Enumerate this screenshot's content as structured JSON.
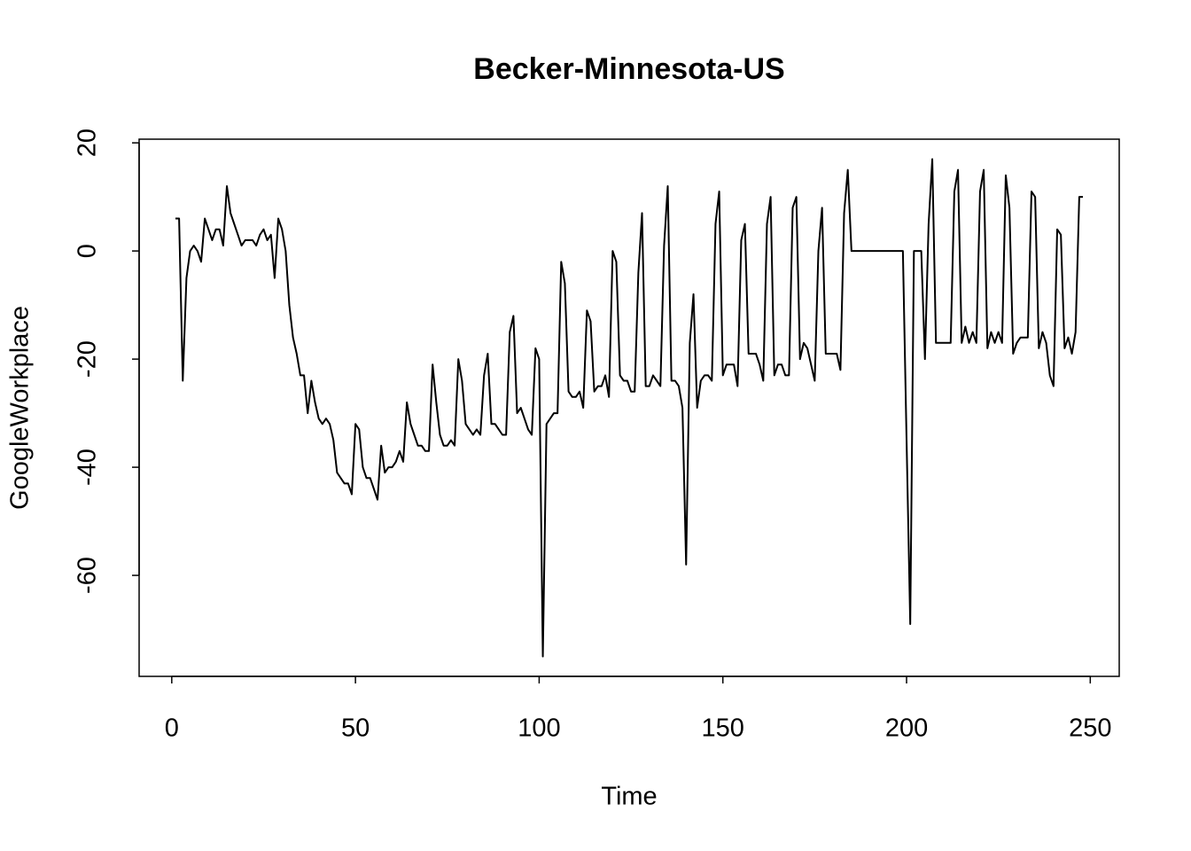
{
  "chart_data": {
    "type": "line",
    "title": "Becker-Minnesota-US",
    "x_label": "Time",
    "y_label": "GoogleWorkplace",
    "x": [
      1,
      2,
      3,
      4,
      5,
      6,
      7,
      8,
      9,
      10,
      11,
      12,
      13,
      14,
      15,
      16,
      17,
      18,
      19,
      20,
      21,
      22,
      23,
      24,
      25,
      26,
      27,
      28,
      29,
      30,
      31,
      32,
      33,
      34,
      35,
      36,
      37,
      38,
      39,
      40,
      41,
      42,
      43,
      44,
      45,
      46,
      47,
      48,
      49,
      50,
      51,
      52,
      53,
      54,
      55,
      56,
      57,
      58,
      59,
      60,
      61,
      62,
      63,
      64,
      65,
      66,
      67,
      68,
      69,
      70,
      71,
      72,
      73,
      74,
      75,
      76,
      77,
      78,
      79,
      80,
      81,
      82,
      83,
      84,
      85,
      86,
      87,
      88,
      89,
      90,
      91,
      92,
      93,
      94,
      95,
      96,
      97,
      98,
      99,
      100,
      101,
      102,
      103,
      104,
      105,
      106,
      107,
      108,
      109,
      110,
      111,
      112,
      113,
      114,
      115,
      116,
      117,
      118,
      119,
      120,
      121,
      122,
      123,
      124,
      125,
      126,
      127,
      128,
      129,
      130,
      131,
      132,
      133,
      134,
      135,
      136,
      137,
      138,
      139,
      140,
      141,
      142,
      143,
      144,
      145,
      146,
      147,
      148,
      149,
      150,
      151,
      152,
      153,
      154,
      155,
      156,
      157,
      158,
      159,
      160,
      161,
      162,
      163,
      164,
      165,
      166,
      167,
      168,
      169,
      170,
      171,
      172,
      173,
      174,
      175,
      176,
      177,
      178,
      179,
      180,
      181,
      182,
      183,
      184,
      185,
      186,
      187,
      188,
      189,
      190,
      191,
      192,
      193,
      194,
      195,
      196,
      197,
      198,
      199,
      200,
      201,
      202,
      203,
      204,
      205,
      206,
      207,
      208,
      209,
      210,
      211,
      212,
      213,
      214,
      215,
      216,
      217,
      218,
      219,
      220,
      221,
      222,
      223,
      224,
      225,
      226,
      227,
      228,
      229,
      230,
      231,
      232,
      233,
      234,
      235,
      236,
      237,
      238,
      239,
      240,
      241,
      242,
      243,
      244,
      245,
      246,
      247,
      248
    ],
    "series": [
      {
        "name": "GoogleWorkplace",
        "color": "#000000",
        "values": [
          6,
          6,
          -24,
          -5,
          0,
          1,
          0,
          -2,
          6,
          4,
          2,
          4,
          4,
          1,
          12,
          7,
          5,
          3,
          1,
          2,
          2,
          2,
          1,
          3,
          4,
          2,
          3,
          -5,
          6,
          4,
          0,
          -10,
          -16,
          -19,
          -23,
          -23,
          -30,
          -24,
          -28,
          -31,
          -32,
          -31,
          -32,
          -35,
          -41,
          -42,
          -43,
          -43,
          -45,
          -32,
          -33,
          -40,
          -42,
          -42,
          -44,
          -46,
          -36,
          -41,
          -40,
          -40,
          -39,
          -37,
          -39,
          -28,
          -32,
          -34,
          -36,
          -36,
          -37,
          -37,
          -21,
          -28,
          -34,
          -36,
          -36,
          -35,
          -36,
          -20,
          -24,
          -32,
          -33,
          -34,
          -33,
          -34,
          -23,
          -19,
          -32,
          -32,
          -33,
          -34,
          -34,
          -15,
          -12,
          -30,
          -29,
          -31,
          -33,
          -34,
          -18,
          -20,
          -75,
          -32,
          -31,
          -30,
          -30,
          -2,
          -6,
          -26,
          -27,
          -27,
          -26,
          -29,
          -11,
          -13,
          -26,
          -25,
          -25,
          -23,
          -27,
          0,
          -2,
          -23,
          -24,
          -24,
          -26,
          -26,
          -4,
          7,
          -25,
          -25,
          -23,
          -24,
          -25,
          1,
          12,
          -24,
          -24,
          -25,
          -29,
          -58,
          -17,
          -8,
          -29,
          -24,
          -23,
          -23,
          -24,
          5,
          11,
          -23,
          -21,
          -21,
          -21,
          -25,
          2,
          5,
          -19,
          -19,
          -19,
          -21,
          -24,
          5,
          10,
          -23,
          -21,
          -21,
          -23,
          -23,
          8,
          10,
          -20,
          -17,
          -18,
          -21,
          -24,
          0,
          8,
          -19,
          -19,
          -19,
          -19,
          -22,
          7,
          15,
          0,
          0,
          0,
          0,
          0,
          0,
          0,
          0,
          0,
          0,
          0,
          0,
          0,
          0,
          0,
          -35,
          -69,
          0,
          0,
          0,
          -20,
          5,
          17,
          -17,
          -17,
          -17,
          -17,
          -17,
          11,
          15,
          -17,
          -14,
          -17,
          -15,
          -17,
          11,
          15,
          -18,
          -15,
          -17,
          -15,
          -17,
          14,
          8,
          -19,
          -17,
          -16,
          -16,
          -16,
          11,
          10,
          -18,
          -15,
          -17,
          -23,
          -25,
          4,
          3,
          -18,
          -16,
          -19,
          -15,
          10,
          10
        ]
      }
    ],
    "xlim": [
      -8.88,
      257.88
    ],
    "ylim": [
      -78.68,
      20.68
    ],
    "xticks": [
      0,
      50,
      100,
      150,
      200,
      250
    ],
    "yticks": [
      -60,
      -40,
      -20,
      0,
      20
    ],
    "grid": false
  }
}
